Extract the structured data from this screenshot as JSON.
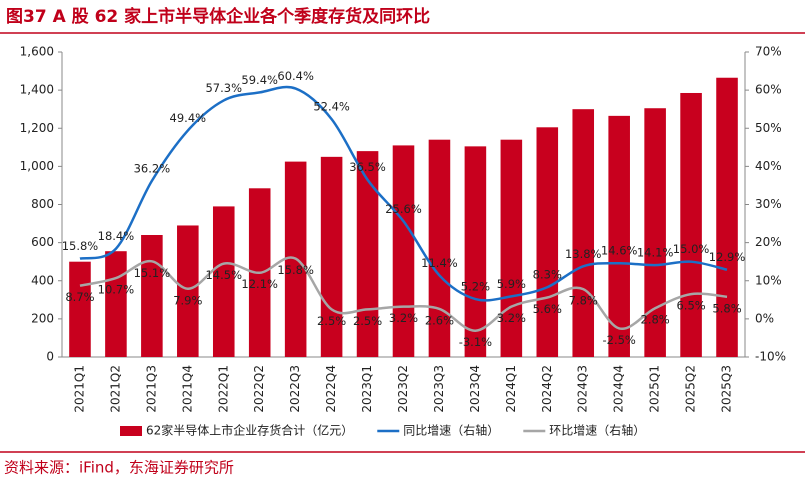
{
  "title": "图37  A 股 62 家上市半导体企业各个季度存货及同环比",
  "source": "资料来源：iFind，东海证券研究所",
  "chart_data": {
    "type": "bar",
    "categories": [
      "2021Q1",
      "2021Q2",
      "2021Q3",
      "2021Q4",
      "2022Q1",
      "2022Q2",
      "2022Q3",
      "2022Q4",
      "2023Q1",
      "2023Q2",
      "2023Q3",
      "2023Q4",
      "2024Q1",
      "2024Q2",
      "2024Q3",
      "2024Q4",
      "2025Q1",
      "2025Q2",
      "2025Q3"
    ],
    "series": [
      {
        "name": "62家半导体上市企业存货合计（亿元）",
        "type": "bar",
        "color": "#c8001e",
        "values": [
          500,
          555,
          640,
          690,
          790,
          885,
          1025,
          1050,
          1080,
          1110,
          1140,
          1105,
          1140,
          1205,
          1300,
          1265,
          1305,
          1385,
          1465
        ]
      },
      {
        "name": "同比增速（右轴）",
        "type": "line",
        "axis": "y2",
        "color": "#1c6fc6",
        "values": [
          15.8,
          18.4,
          36.2,
          49.4,
          57.3,
          59.4,
          60.4,
          52.4,
          36.5,
          25.6,
          11.4,
          5.2,
          5.9,
          8.3,
          13.8,
          14.6,
          14.1,
          15.0,
          12.9
        ],
        "value_labels": [
          "15.8%",
          "18.4%",
          "36.2%",
          "49.4%",
          "57.3%",
          "59.4%",
          "60.4%",
          "52.4%",
          "36.5%",
          "25.6%",
          "11.4%",
          "5.2%",
          "5.9%",
          "8.3%",
          "13.8%",
          "14.6%",
          "14.1%",
          "15.0%",
          "12.9%"
        ]
      },
      {
        "name": "环比增速（右轴）",
        "type": "line",
        "axis": "y2",
        "color": "#a6a6a6",
        "values": [
          8.7,
          10.7,
          15.1,
          7.9,
          14.5,
          12.1,
          15.8,
          2.5,
          2.5,
          3.2,
          2.6,
          -3.1,
          3.2,
          5.6,
          7.8,
          -2.5,
          2.8,
          6.5,
          5.8
        ],
        "value_labels": [
          "8.7%",
          "10.7%",
          "15.1%",
          "7.9%",
          "14.5%",
          "12.1%",
          "15.8%",
          "2.5%",
          "2.5%",
          "3.2%",
          "2.6%",
          "-3.1%",
          "3.2%",
          "5.6%",
          "7.8%",
          "-2.5%",
          "2.8%",
          "6.5%",
          "5.8%"
        ]
      }
    ],
    "ylim": [
      0,
      1600
    ],
    "yticks": [
      0,
      200,
      400,
      600,
      800,
      {
        "value": 1000,
        "label": "1,000"
      },
      {
        "value": 1200,
        "label": "1,200"
      },
      {
        "value": 1400,
        "label": "1,400"
      },
      {
        "value": 1600,
        "label": "1,600"
      }
    ],
    "y2lim": [
      -10,
      70
    ],
    "y2ticks": [
      {
        "value": -10,
        "label": "-10%"
      },
      {
        "value": 0,
        "label": "0%"
      },
      {
        "value": 10,
        "label": "10%"
      },
      {
        "value": 20,
        "label": "20%"
      },
      {
        "value": 30,
        "label": "30%"
      },
      {
        "value": 40,
        "label": "40%"
      },
      {
        "value": 50,
        "label": "50%"
      },
      {
        "value": 60,
        "label": "60%"
      },
      {
        "value": 70,
        "label": "70%"
      }
    ]
  }
}
